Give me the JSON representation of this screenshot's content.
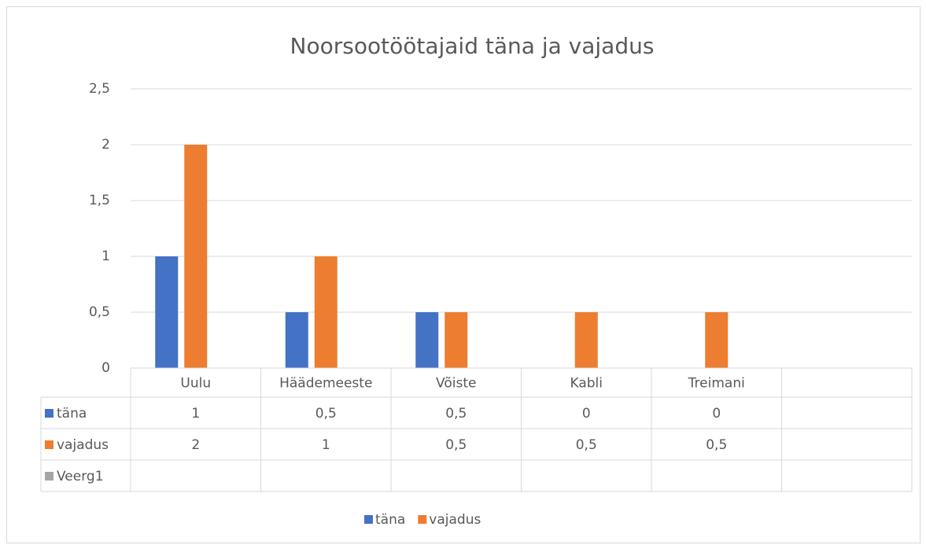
{
  "chart_data": {
    "type": "bar",
    "title": "Noorsootöötajaid täna ja vajadus",
    "categories": [
      "Uulu",
      "Häädemeeste",
      "Võiste",
      "Kabli",
      "Treimani",
      null
    ],
    "series": [
      {
        "name": "täna",
        "color": "#4472c4",
        "values": [
          1,
          0.5,
          0.5,
          0,
          0,
          null
        ],
        "value_labels": [
          "1",
          "0,5",
          "0,5",
          "0",
          "0",
          null
        ]
      },
      {
        "name": "vajadus",
        "color": "#ed7d31",
        "values": [
          2,
          1,
          0.5,
          0.5,
          0.5,
          null
        ],
        "value_labels": [
          "2",
          "1",
          "0,5",
          "0,5",
          "0,5",
          null
        ]
      },
      {
        "name": "Veerg1",
        "color": "#a5a5a5",
        "values": [
          null,
          null,
          null,
          null,
          null,
          null
        ],
        "value_labels": [
          null,
          null,
          null,
          null,
          null,
          null
        ]
      }
    ],
    "ylim": [
      0,
      2.5
    ],
    "yticks": [
      0,
      {
        "value": 0.5,
        "label": "0,5"
      },
      1,
      {
        "value": 1.5,
        "label": "1,5"
      },
      2,
      {
        "value": 2.5,
        "label": "2,5"
      }
    ],
    "grid": true,
    "legend": "bottom",
    "data_table": true
  }
}
